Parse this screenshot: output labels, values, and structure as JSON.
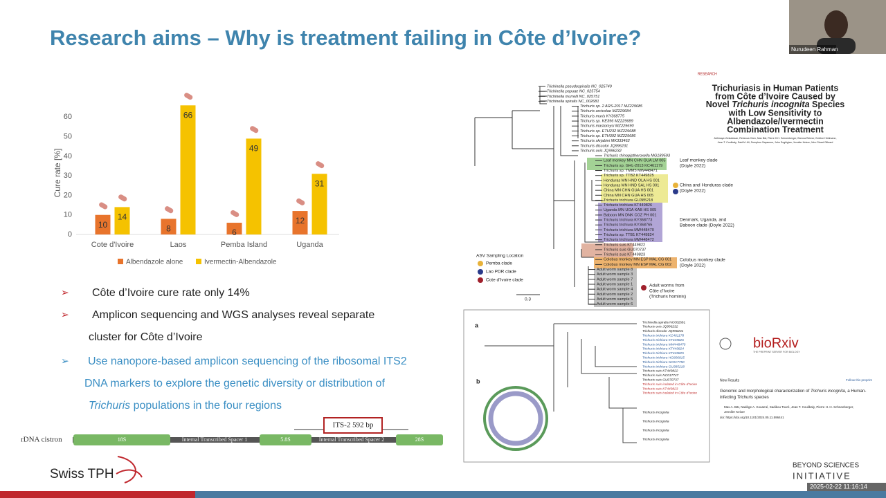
{
  "header": {
    "title": "Research aims – Why is treatment failing in Côte d’Ivoire?",
    "participant": "Nurudeen Rahman"
  },
  "chart_data": {
    "type": "bar",
    "ylabel": "Cure rate [%]",
    "categories": [
      "Cote d'Ivoire",
      "Laos",
      "Pemba Island",
      "Uganda"
    ],
    "series": [
      {
        "name": "Albendazole alone",
        "color": "#e8742c",
        "values": [
          10,
          8,
          6,
          12
        ]
      },
      {
        "name": "Ivermectin-Albendazole",
        "color": "#f5c200",
        "values": [
          14,
          66,
          49,
          31
        ]
      }
    ],
    "ylim": [
      0,
      70
    ],
    "yticks": [
      0,
      10,
      20,
      30,
      40,
      50,
      60
    ]
  },
  "bullets": [
    {
      "lines": [
        "Côte d’Ivoire cure rate only 14%"
      ]
    },
    {
      "lines": [
        "Amplicon sequencing and WGS analyses reveal separate",
        "cluster for Côte d’Ivoire"
      ]
    },
    {
      "lines": [
        "Use nanopore-based amplicon sequencing of the ribosomal ITS2",
        "DNA markers to explore the genetic diversity or distribution of"
      ],
      "italic": "Trichuris",
      "tail": " populations in the four regions"
    }
  ],
  "rdna": {
    "label": "rDNA cistron",
    "segments": [
      "18S",
      "Internal Transcribed Spacer 1",
      "5.8S",
      "Internal Transcribed Spacer 2",
      "28S"
    ],
    "callout": "ITS-2  592 bp"
  },
  "tree": {
    "taxa": [
      "Trichinella pseudospiralis NC_025749",
      "Trichinella papuae NC_025754",
      "Trichinella murrelli NC_025751",
      "Trichinella spiralis NC_002681",
      "Trichuris sp. 2 ARS-2017 MZ229685",
      "Trichuris arvicolae MZ229684",
      "Trichuris muris KY368775",
      "Trichuris sp. KE396 MZ229689",
      "Trichuris mastomysi MZ229690",
      "Trichuris sp. ETH232 MZ229688",
      "Trichuris sp. ETH392 MZ229686",
      "Trichuris skrjabini MK333462",
      "Trichuris discolor JQ996231",
      "Trichuris ovis JQ996232",
      "Trichuris rhinopiptheroxella MG189593",
      "Leaf monkey MN CHN GUA LM 005",
      "Trichuris sp. GHL-2013 KC461179",
      "Trichuris sp. TMM5 MW448471",
      "Trichuris sp. TTB2 KT449825",
      "Honduras MN HND OLA HS 001",
      "Honduras MN HND SAL HS 001",
      "China MN CHN GUA HS 001",
      "China MN CHN GUA HS 005",
      "Trichuris trichiura GU385218",
      "Trichuris trichiura KT449826",
      "Uganda MN UGA KAB HS 005",
      "Baboon MN DNK COZ PH 001",
      "Trichuris trichiura KY368773",
      "Trichuris trichiura KY368765",
      "Trichuris trichiura MW448470",
      "Trichuris sp. TTB1 KT449824",
      "Trichuris trichiura MW448472",
      "Trichuris suis KT449822",
      "Trichuris suis GU070737",
      "Trichuris suis KT449823",
      "Colobus monkey MN ESP MAL CG 001",
      "Colobus monkey MN ESP MAL CG 002",
      "Adult worm sample 8",
      "Adult worm sample 3",
      "Adult worm sample 7",
      "Adult worm sample 1",
      "Adult worm sample 4",
      "Adult worm sample 2",
      "Adult worm sample 5",
      "Adult worm sample 6"
    ],
    "clades": [
      {
        "lines": [
          "Leaf monkey clade",
          "(Doyle 2022)"
        ]
      },
      {
        "lines": [
          "China and Honduras clade",
          "(Doyle 2022)"
        ]
      },
      {
        "lines": [
          "Denmark, Uganda, and",
          "Baboon clade (Doyle 2022)"
        ]
      },
      {
        "lines": [
          "Colobus monkey clade",
          "(Doyle 2022)"
        ]
      },
      {
        "lines": [
          "Adult worms from",
          "Côte d’Ivoire",
          "(Trichuris hominis)"
        ]
      }
    ],
    "legend_title": "ASV Sampling Location",
    "legend": [
      "Pemba clade",
      "Lao PDR clade",
      "Cote d’Ivoire clade"
    ],
    "scale": "0.3"
  },
  "paper": {
    "label": "RESEARCH",
    "title_lines": [
      "Trichuriasis in Human Patients",
      "from Côte d’Ivoire Caused by"
    ],
    "title_pre": "Novel ",
    "title_italic": "Trichuris incognita",
    "title_post": " Species",
    "title_rest": [
      "with Low Sensitivity to",
      "Albendazole/Ivermectin",
      "Combination Treatment"
    ],
    "authors": [
      "Abhinaya Venkatesan, Rebecca Chen, Max Bär, Pierre H.H. Schneeberger, Brenna Reimer, Eveline Hürlimann,",
      "Jean T. Coulibaly, Said M. Ali, Somphou Sayasone, John Soghigian, Jennifer Keiser, John Stuart Gilleard"
    ]
  },
  "figure": {
    "panels": [
      "a",
      "b"
    ],
    "labels": [
      "Trichinella spiralis NC002681",
      "Trichuris ovis JQ996232",
      "Trichuris discolor JQ996231",
      "Trichuris trichiura KC461178",
      "Trichuris trichiura KT449826",
      "Trichuris trichiura MW448470",
      "Trichuris trichiura KT449824",
      "Trichuris trichiura KT449825",
      "Trichuris trichiura HG806815",
      "Trichuris trichiura NC017750",
      "Trichuris trichiura GU385218",
      "Trichuris suis KT449822",
      "Trichuris suis NC017747",
      "Trichuris suis GU070737",
      "Trichuris suis isolated in Côte d’Ivoire",
      "Trichuris suis KT449823",
      "Trichuris suis isolated in Côte d’Ivoire",
      "Trichuris incognita",
      "Trichuris incognita",
      "Trichuris incognita",
      "Trichuris incognita"
    ]
  },
  "preprint": {
    "logo": "bioRxiv",
    "tagline": "THE PREPRINT SERVER FOR BIOLOGY",
    "section": "New Results",
    "follow": "Follow this preprint",
    "title_pre": "Genomic and morphological characterization of ",
    "title_italic": "Trichuris incognita",
    "title_post": ", a Human-",
    "title_line2_pre": "infecting ",
    "title_line2_italic": "Trichuris",
    "title_line2_post": " species",
    "authors": [
      "Max A. Bär, Nadège A. Kouamé, Sadikou Touré, Jean T. Coulibaly, Pierre H. H. Schneeberger,",
      "Jennifer Keiser"
    ],
    "doi": "doi: https://doi.org/10.1101/2024.05.11.596441"
  },
  "footer": {
    "logo": "Swiss TPH",
    "initiative_top": "BEYOND SCIENCES",
    "initiative_bottom": "INITIATIVE",
    "timestamp": "2025-02-22  11:16:14"
  }
}
